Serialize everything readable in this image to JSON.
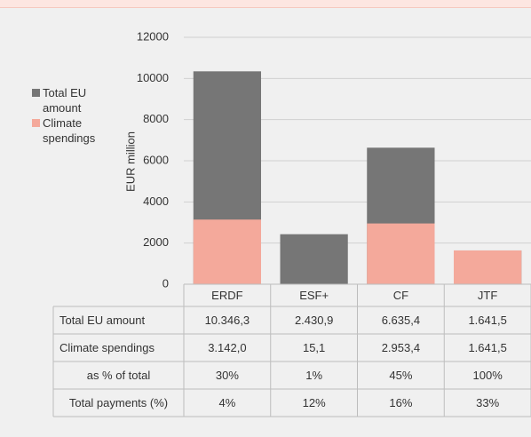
{
  "chart_data": {
    "type": "bar",
    "categories": [
      "ERDF",
      "ESF+",
      "CF",
      "JTF"
    ],
    "series": [
      {
        "name": "Total EU amount",
        "color": "#767676",
        "values": [
          10346.3,
          2430.9,
          6635.4,
          1641.5
        ],
        "value_labels": [
          "10.346,3",
          "2.430,9",
          "6.635,4",
          "1.641,5"
        ]
      },
      {
        "name": "Climate spendings",
        "color": "#f4a99b",
        "values": [
          3142.0,
          15.1,
          2953.4,
          1641.5
        ],
        "value_labels": [
          "3.142,0",
          "15,1",
          "2.953,4",
          "1.641,5"
        ]
      }
    ],
    "table_rows": [
      {
        "name": "as % of total",
        "values": [
          30,
          1,
          45,
          100
        ],
        "value_labels": [
          "30%",
          "1%",
          "45%",
          "100%"
        ]
      },
      {
        "name": "Total payments (%)",
        "values": [
          4,
          12,
          16,
          33
        ],
        "value_labels": [
          "4%",
          "12%",
          "16%",
          "33%"
        ]
      }
    ],
    "y_label": "EUR million",
    "ylim": [
      0,
      12000
    ],
    "yticks": [
      0,
      2000,
      4000,
      6000,
      8000,
      10000,
      12000
    ],
    "grid": true,
    "legend": "left"
  }
}
